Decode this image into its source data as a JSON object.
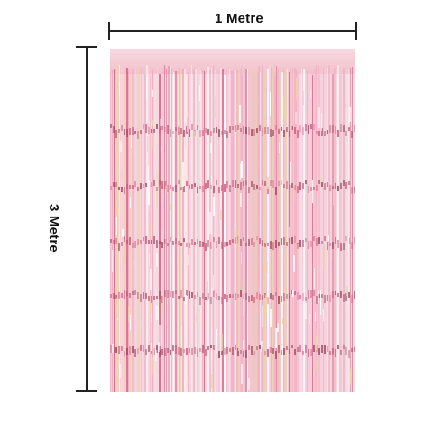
{
  "dimensions": {
    "width_label": "1 Metre",
    "height_label": "3 Metre"
  },
  "product": {
    "name_icon": "foil-fringe-curtain",
    "colors": {
      "base": "#f6d4dc",
      "pink": "#f2a9bd",
      "deep_pink": "#d45b7f",
      "highlight": "#ffffff",
      "gold": "#e8d6a6",
      "line": "#222222"
    }
  }
}
